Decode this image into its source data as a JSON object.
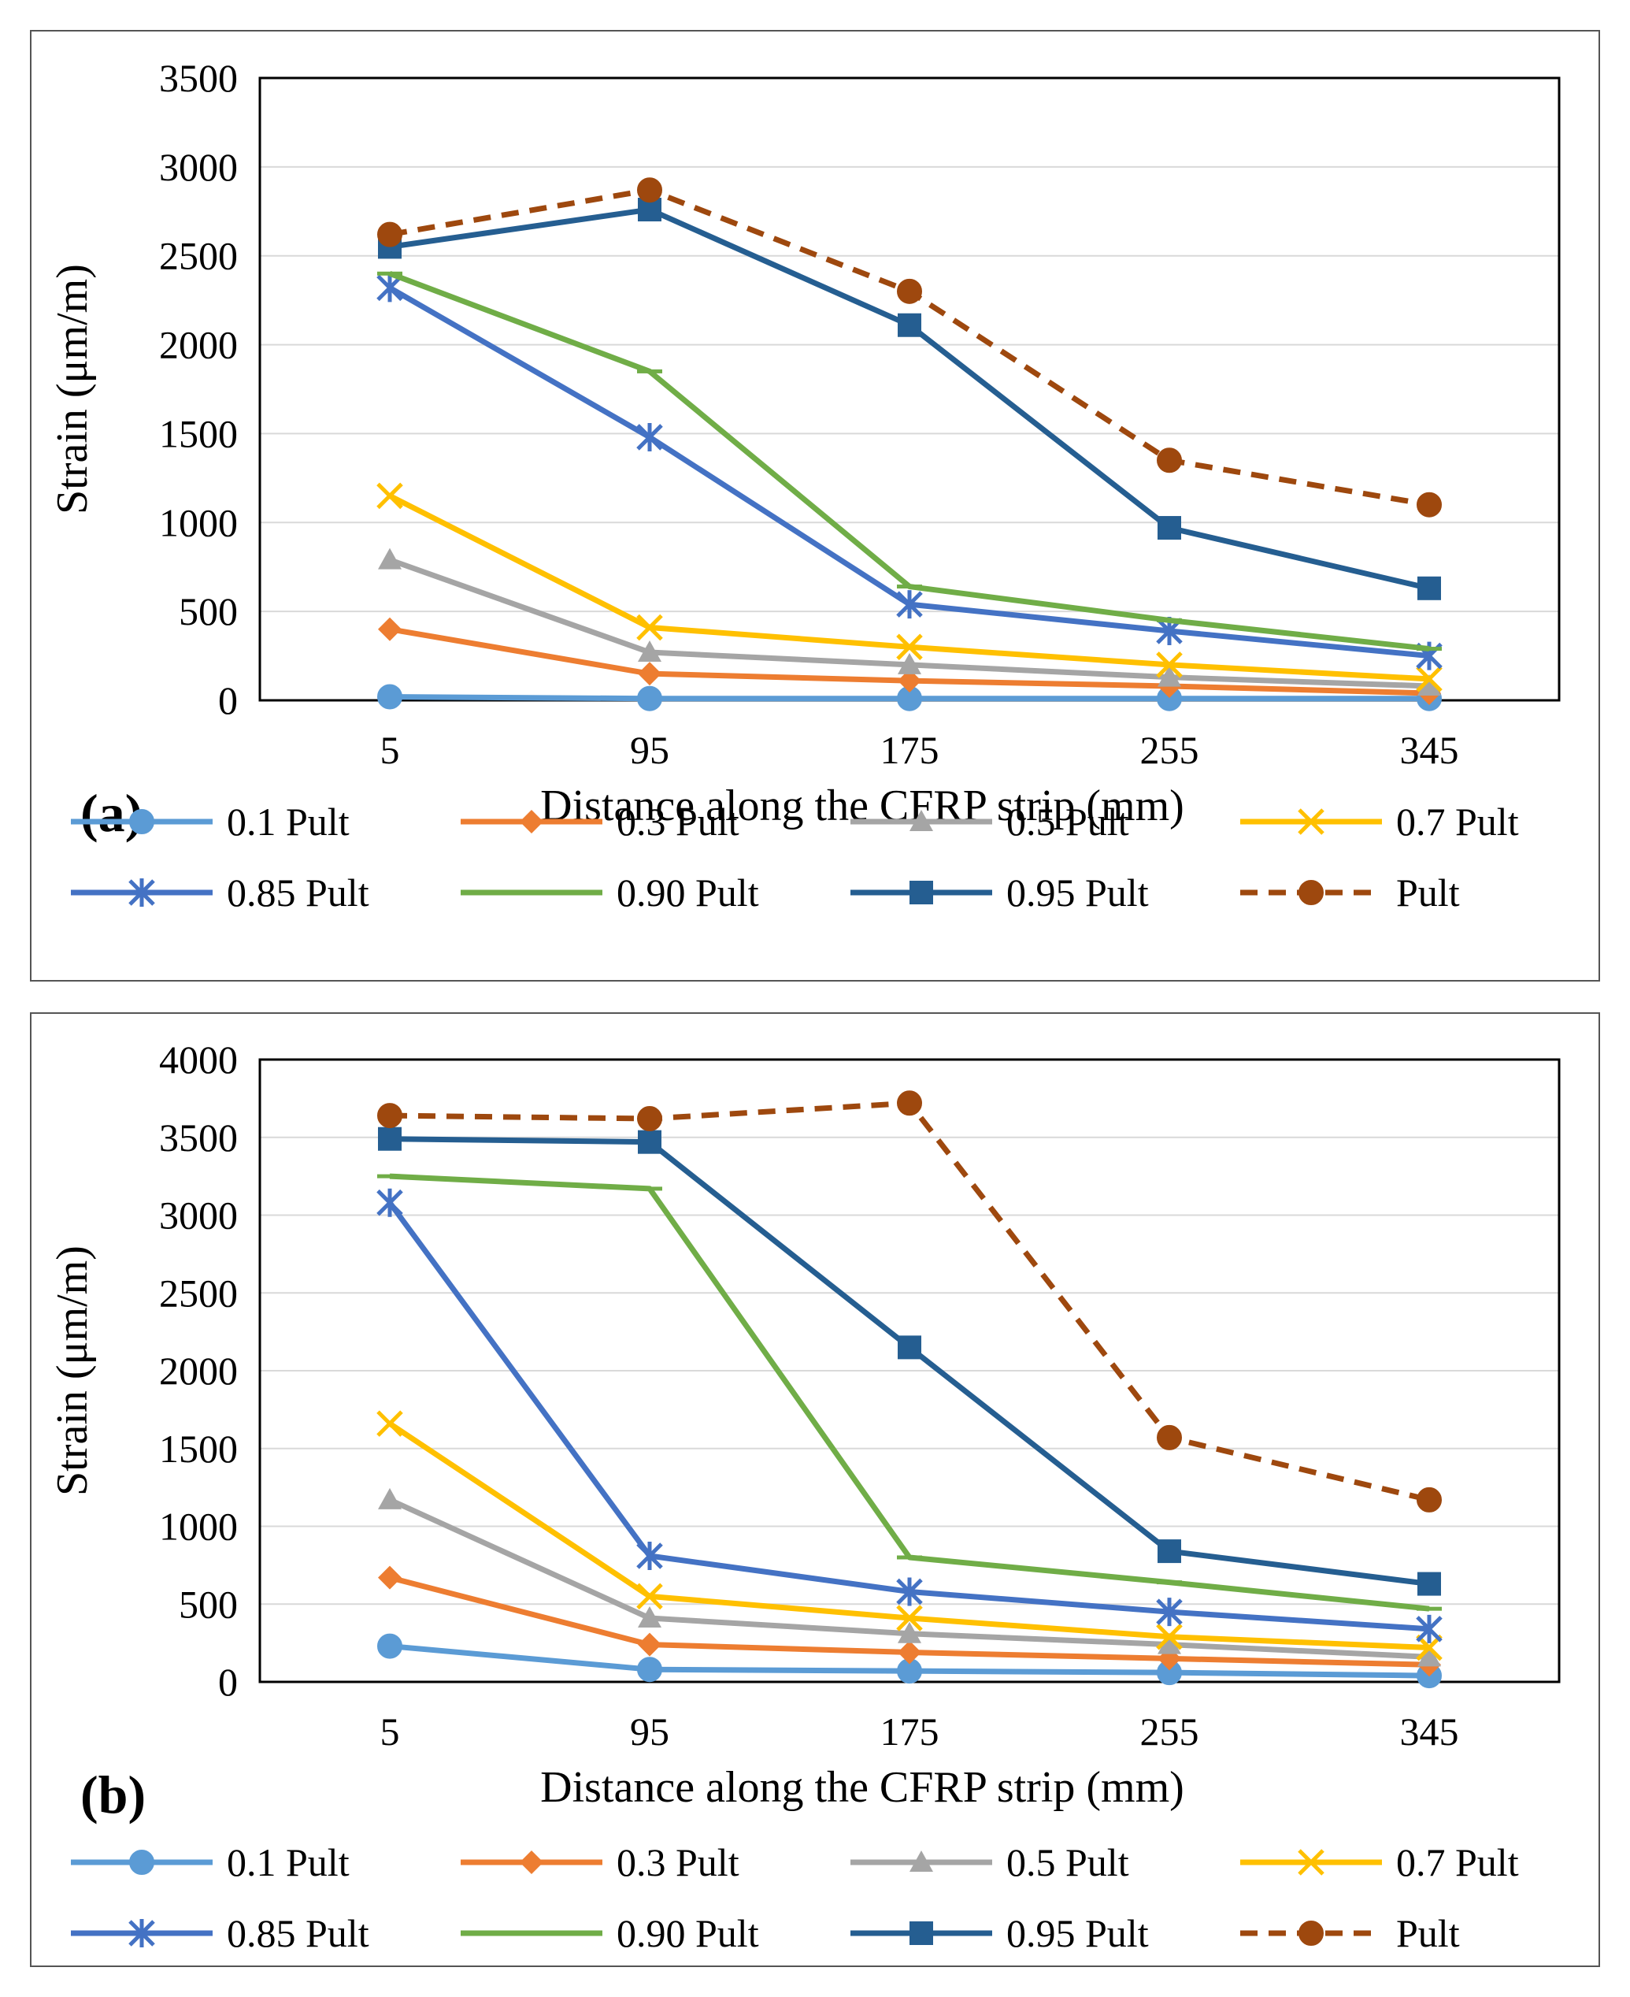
{
  "chart_data": [
    {
      "type": "line",
      "panel_label": "(a)",
      "title": "",
      "xlabel": "Distance along the CFRP strip (mm)",
      "ylabel": "Strain (μm/m)",
      "categories": [
        "5",
        "95",
        "175",
        "255",
        "345"
      ],
      "ylim": [
        0,
        3500
      ],
      "yticks": [
        "0",
        "500",
        "1000",
        "1500",
        "2000",
        "2500",
        "3000",
        "3500"
      ],
      "grid": true,
      "legend_position": "bottom",
      "series": [
        {
          "name": "0.1 Pult",
          "marker": "circle",
          "color": "#5B9BD5",
          "dash": false,
          "values": [
            20,
            10,
            10,
            10,
            10
          ]
        },
        {
          "name": "0.3 Pult",
          "marker": "diamond",
          "color": "#ED7D31",
          "dash": false,
          "values": [
            400,
            150,
            110,
            80,
            40
          ]
        },
        {
          "name": "0.5 Pult",
          "marker": "triangle",
          "color": "#A5A5A5",
          "dash": false,
          "values": [
            790,
            270,
            200,
            130,
            80
          ]
        },
        {
          "name": "0.7 Pult",
          "marker": "x",
          "color": "#FFC000",
          "dash": false,
          "values": [
            1150,
            410,
            300,
            200,
            120
          ]
        },
        {
          "name": "0.85 Pult",
          "marker": "star",
          "color": "#4472C4",
          "dash": false,
          "values": [
            2320,
            1480,
            540,
            390,
            250
          ]
        },
        {
          "name": "0.90 Pult",
          "marker": "dash",
          "color": "#70AD47",
          "dash": false,
          "values": [
            2400,
            1850,
            640,
            450,
            290
          ]
        },
        {
          "name": "0.95 Pult",
          "marker": "square",
          "color": "#255E91",
          "dash": false,
          "values": [
            2550,
            2760,
            2110,
            970,
            630
          ]
        },
        {
          "name": "Pult",
          "marker": "circle",
          "color": "#9E480E",
          "dash": true,
          "values": [
            2620,
            2870,
            2300,
            1350,
            1100
          ]
        }
      ]
    },
    {
      "type": "line",
      "panel_label": "(b)",
      "title": "",
      "xlabel": "Distance along the CFRP strip (mm)",
      "ylabel": "Strain (μm/m)",
      "categories": [
        "5",
        "95",
        "175",
        "255",
        "345"
      ],
      "ylim": [
        0,
        4000
      ],
      "yticks": [
        "0",
        "500",
        "1000",
        "1500",
        "2000",
        "2500",
        "3000",
        "3500",
        "4000"
      ],
      "grid": true,
      "legend_position": "bottom",
      "series": [
        {
          "name": "0.1 Pult",
          "marker": "circle",
          "color": "#5B9BD5",
          "dash": false,
          "values": [
            230,
            80,
            70,
            60,
            40
          ]
        },
        {
          "name": "0.3 Pult",
          "marker": "diamond",
          "color": "#ED7D31",
          "dash": false,
          "values": [
            670,
            240,
            190,
            150,
            110
          ]
        },
        {
          "name": "0.5 Pult",
          "marker": "triangle",
          "color": "#A5A5A5",
          "dash": false,
          "values": [
            1170,
            410,
            310,
            240,
            160
          ]
        },
        {
          "name": "0.7 Pult",
          "marker": "x",
          "color": "#FFC000",
          "dash": false,
          "values": [
            1660,
            550,
            410,
            290,
            220
          ]
        },
        {
          "name": "0.85 Pult",
          "marker": "star",
          "color": "#4472C4",
          "dash": false,
          "values": [
            3080,
            810,
            580,
            450,
            340
          ]
        },
        {
          "name": "0.90 Pult",
          "marker": "dash",
          "color": "#70AD47",
          "dash": false,
          "values": [
            3250,
            3170,
            800,
            640,
            470
          ]
        },
        {
          "name": "0.95 Pult",
          "marker": "square",
          "color": "#255E91",
          "dash": false,
          "values": [
            3490,
            3470,
            2150,
            840,
            630
          ]
        },
        {
          "name": "Pult",
          "marker": "circle",
          "color": "#9E480E",
          "dash": true,
          "values": [
            3640,
            3620,
            3720,
            1570,
            1170
          ]
        }
      ]
    }
  ]
}
